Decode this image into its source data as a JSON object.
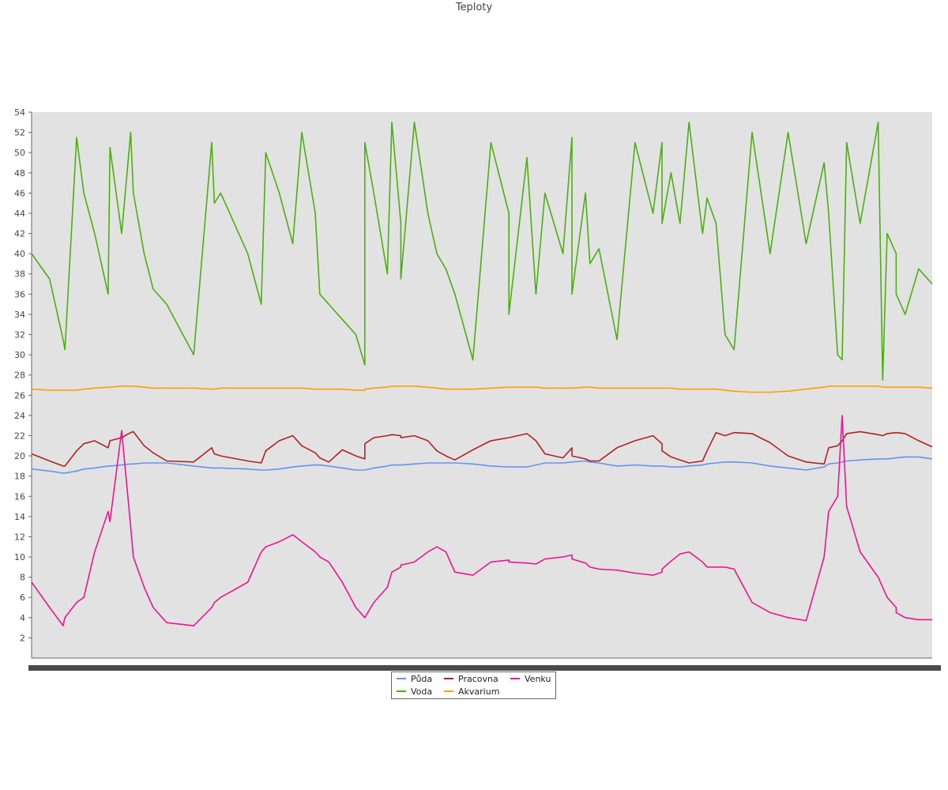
{
  "chart_data": {
    "type": "line",
    "title": "Teploty",
    "xlabel": "",
    "ylabel": "",
    "ylim": [
      0,
      54
    ],
    "y_ticks": [
      2,
      4,
      6,
      8,
      10,
      12,
      14,
      16,
      18,
      20,
      22,
      24,
      26,
      28,
      30,
      32,
      34,
      36,
      38,
      40,
      42,
      44,
      46,
      48,
      50,
      52,
      54
    ],
    "x_tick_labels_note": "",
    "x": [
      0,
      0.02,
      0.035,
      0.037,
      0.05,
      0.058,
      0.07,
      0.085,
      0.087,
      0.1,
      0.11,
      0.113,
      0.125,
      0.135,
      0.15,
      0.18,
      0.2,
      0.203,
      0.21,
      0.24,
      0.255,
      0.26,
      0.275,
      0.29,
      0.3,
      0.315,
      0.32,
      0.33,
      0.345,
      0.36,
      0.37,
      0.37,
      0.38,
      0.395,
      0.4,
      0.41,
      0.41,
      0.425,
      0.44,
      0.45,
      0.46,
      0.47,
      0.49,
      0.51,
      0.53,
      0.53,
      0.55,
      0.56,
      0.57,
      0.59,
      0.6,
      0.6,
      0.615,
      0.62,
      0.63,
      0.65,
      0.67,
      0.69,
      0.7,
      0.7,
      0.71,
      0.72,
      0.73,
      0.745,
      0.75,
      0.76,
      0.77,
      0.78,
      0.8,
      0.82,
      0.84,
      0.86,
      0.88,
      0.885,
      0.895,
      0.9,
      0.905,
      0.92,
      0.94,
      0.945,
      0.95,
      0.96,
      0.96,
      0.97,
      0.985,
      1.0
    ],
    "series": [
      {
        "name": "Půda",
        "color": "#6495ed",
        "values": [
          18.7,
          18.5,
          18.3,
          18.3,
          18.5,
          18.7,
          18.8,
          19.0,
          19.0,
          19.1,
          19.2,
          19.2,
          19.3,
          19.3,
          19.3,
          19.0,
          18.8,
          18.8,
          18.8,
          18.7,
          18.6,
          18.6,
          18.7,
          18.9,
          19.0,
          19.1,
          19.1,
          19.0,
          18.8,
          18.6,
          18.6,
          18.6,
          18.8,
          19.0,
          19.1,
          19.1,
          19.1,
          19.2,
          19.3,
          19.3,
          19.3,
          19.3,
          19.2,
          19.0,
          18.9,
          18.9,
          18.9,
          19.1,
          19.3,
          19.3,
          19.4,
          19.4,
          19.5,
          19.4,
          19.3,
          19.0,
          19.1,
          19.0,
          19.0,
          19.0,
          18.9,
          18.9,
          19.0,
          19.1,
          19.2,
          19.3,
          19.4,
          19.4,
          19.3,
          19.0,
          18.8,
          18.6,
          18.9,
          19.2,
          19.3,
          19.4,
          19.5,
          19.6,
          19.7,
          19.7,
          19.7,
          19.8,
          19.8,
          19.9,
          19.9,
          19.7
        ]
      },
      {
        "name": "Voda",
        "color": "#4caf10",
        "values": [
          40,
          37.5,
          31.5,
          30.5,
          51.5,
          46,
          42,
          36,
          50.5,
          42,
          52,
          46,
          40,
          36.5,
          35,
          30,
          51,
          45,
          46,
          40,
          35,
          50,
          46,
          41,
          52,
          44,
          36,
          35,
          33.5,
          32,
          29,
          51,
          46,
          38,
          53,
          43,
          37.5,
          53,
          44,
          40,
          38.5,
          36,
          29.5,
          51,
          44,
          34,
          49.5,
          36,
          46,
          40,
          51.5,
          36,
          46,
          39,
          40.5,
          31.5,
          51,
          44,
          51,
          43,
          48,
          43,
          53,
          42,
          45.5,
          43,
          32,
          30.5,
          52,
          40,
          52,
          41,
          49,
          44,
          30,
          29.5,
          51,
          43,
          53,
          27.5,
          42,
          40,
          36,
          34,
          38.5,
          37
        ]
      },
      {
        "name": "Pracovna",
        "color": "#b22222",
        "values": [
          20.2,
          19.5,
          19.0,
          19.0,
          20.5,
          21.2,
          21.5,
          20.8,
          21.5,
          21.8,
          22.3,
          22.4,
          21.0,
          20.3,
          19.5,
          19.4,
          20.8,
          20.2,
          20.0,
          19.5,
          19.3,
          20.5,
          21.5,
          22.0,
          21.0,
          20.3,
          19.8,
          19.4,
          20.6,
          20.0,
          19.7,
          21.2,
          21.8,
          22.0,
          22.1,
          22.0,
          21.8,
          22.0,
          21.5,
          20.5,
          20.0,
          19.6,
          20.6,
          21.5,
          21.8,
          21.8,
          22.2,
          21.5,
          20.2,
          19.8,
          20.8,
          20.0,
          19.7,
          19.5,
          19.5,
          20.8,
          21.5,
          22.0,
          21.2,
          20.5,
          19.9,
          19.6,
          19.3,
          19.5,
          20.5,
          22.3,
          22.0,
          22.3,
          22.2,
          21.3,
          20.0,
          19.4,
          19.2,
          20.8,
          21.0,
          21.5,
          22.2,
          22.4,
          22.1,
          22.0,
          22.2,
          22.3,
          22.3,
          22.2,
          21.5,
          20.9
        ]
      },
      {
        "name": "Akvarium",
        "color": "#ff9f00",
        "values": [
          26.6,
          26.5,
          26.5,
          26.5,
          26.5,
          26.6,
          26.7,
          26.8,
          26.8,
          26.9,
          26.9,
          26.9,
          26.8,
          26.7,
          26.7,
          26.7,
          26.6,
          26.6,
          26.7,
          26.7,
          26.7,
          26.7,
          26.7,
          26.7,
          26.7,
          26.6,
          26.6,
          26.6,
          26.6,
          26.5,
          26.5,
          26.6,
          26.7,
          26.8,
          26.9,
          26.9,
          26.9,
          26.9,
          26.8,
          26.7,
          26.6,
          26.6,
          26.6,
          26.7,
          26.8,
          26.8,
          26.8,
          26.8,
          26.7,
          26.7,
          26.7,
          26.7,
          26.8,
          26.8,
          26.7,
          26.7,
          26.7,
          26.7,
          26.7,
          26.7,
          26.7,
          26.6,
          26.6,
          26.6,
          26.6,
          26.6,
          26.5,
          26.4,
          26.3,
          26.3,
          26.4,
          26.6,
          26.8,
          26.9,
          26.9,
          26.9,
          26.9,
          26.9,
          26.9,
          26.8,
          26.8,
          26.8,
          26.8,
          26.8,
          26.8,
          26.7
        ]
      },
      {
        "name": "Venku",
        "color": "#ee1493",
        "values": [
          7.5,
          5.0,
          3.2,
          4.0,
          5.5,
          6.0,
          10.5,
          14.5,
          13.5,
          22.5,
          13.0,
          10.0,
          7.0,
          5.0,
          3.5,
          3.2,
          5.0,
          5.5,
          6.0,
          7.5,
          10.5,
          11.0,
          11.5,
          12.2,
          11.5,
          10.5,
          10.0,
          9.5,
          7.5,
          5.0,
          4.0,
          4.0,
          5.5,
          7.0,
          8.5,
          9.0,
          9.2,
          9.5,
          10.5,
          11.0,
          10.5,
          8.5,
          8.2,
          9.5,
          9.7,
          9.5,
          9.4,
          9.3,
          9.8,
          10.0,
          10.2,
          9.8,
          9.4,
          9.0,
          8.8,
          8.7,
          8.4,
          8.2,
          8.5,
          8.8,
          9.6,
          10.3,
          10.5,
          9.5,
          9.0,
          9.0,
          9.0,
          8.8,
          5.5,
          4.5,
          4.0,
          3.7,
          10.0,
          14.5,
          16.0,
          24.0,
          15.0,
          10.5,
          8.0,
          7.0,
          6.0,
          5.0,
          4.5,
          4.0,
          3.8,
          3.8
        ]
      }
    ],
    "legend": {
      "position": "bottom-center",
      "columns": 3
    },
    "grid": false
  }
}
